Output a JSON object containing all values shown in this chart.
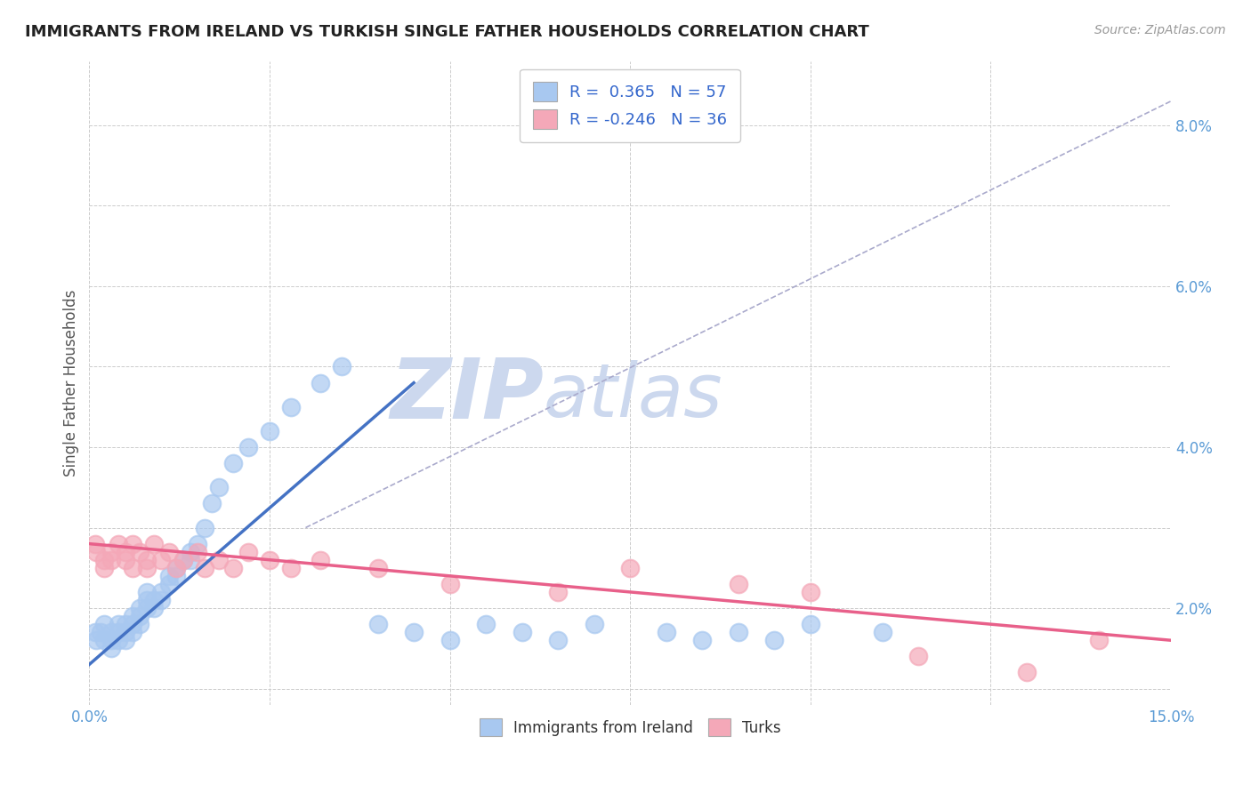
{
  "title": "IMMIGRANTS FROM IRELAND VS TURKISH SINGLE FATHER HOUSEHOLDS CORRELATION CHART",
  "source_text": "Source: ZipAtlas.com",
  "ylabel": "Single Father Households",
  "xlim": [
    0.0,
    0.15
  ],
  "ylim": [
    0.008,
    0.088
  ],
  "xticks": [
    0.0,
    0.025,
    0.05,
    0.075,
    0.1,
    0.125,
    0.15
  ],
  "xticklabels": [
    "0.0%",
    "",
    "",
    "",
    "",
    "",
    "15.0%"
  ],
  "yticks": [
    0.01,
    0.02,
    0.03,
    0.04,
    0.05,
    0.06,
    0.07,
    0.08
  ],
  "yticklabels": [
    "",
    "2.0%",
    "",
    "4.0%",
    "",
    "6.0%",
    "",
    "8.0%"
  ],
  "blue_R": 0.365,
  "blue_N": 57,
  "pink_R": -0.246,
  "pink_N": 36,
  "blue_color": "#a8c8f0",
  "pink_color": "#f4a8b8",
  "blue_line_color": "#4472c4",
  "pink_line_color": "#e8608a",
  "trend_line_color": "#aaaacc",
  "watermark_color": "#ccd8ee",
  "background_color": "#ffffff",
  "grid_color": "#cccccc",
  "blue_scatter_x": [
    0.0008,
    0.001,
    0.0015,
    0.002,
    0.002,
    0.003,
    0.003,
    0.003,
    0.004,
    0.004,
    0.004,
    0.005,
    0.005,
    0.005,
    0.006,
    0.006,
    0.006,
    0.007,
    0.007,
    0.007,
    0.008,
    0.008,
    0.008,
    0.009,
    0.009,
    0.01,
    0.01,
    0.011,
    0.011,
    0.012,
    0.012,
    0.013,
    0.014,
    0.014,
    0.015,
    0.016,
    0.017,
    0.018,
    0.02,
    0.022,
    0.025,
    0.028,
    0.032,
    0.035,
    0.04,
    0.045,
    0.05,
    0.055,
    0.06,
    0.065,
    0.07,
    0.08,
    0.085,
    0.09,
    0.095,
    0.1,
    0.11
  ],
  "blue_scatter_y": [
    0.017,
    0.016,
    0.017,
    0.018,
    0.016,
    0.017,
    0.016,
    0.015,
    0.018,
    0.016,
    0.017,
    0.018,
    0.017,
    0.016,
    0.019,
    0.018,
    0.017,
    0.02,
    0.019,
    0.018,
    0.021,
    0.02,
    0.022,
    0.02,
    0.021,
    0.022,
    0.021,
    0.023,
    0.024,
    0.025,
    0.024,
    0.026,
    0.027,
    0.026,
    0.028,
    0.03,
    0.033,
    0.035,
    0.038,
    0.04,
    0.042,
    0.045,
    0.048,
    0.05,
    0.018,
    0.017,
    0.016,
    0.018,
    0.017,
    0.016,
    0.018,
    0.017,
    0.016,
    0.017,
    0.016,
    0.018,
    0.017
  ],
  "pink_scatter_x": [
    0.0008,
    0.001,
    0.002,
    0.002,
    0.003,
    0.003,
    0.004,
    0.005,
    0.005,
    0.006,
    0.006,
    0.007,
    0.008,
    0.008,
    0.009,
    0.01,
    0.011,
    0.012,
    0.013,
    0.015,
    0.016,
    0.018,
    0.02,
    0.022,
    0.025,
    0.028,
    0.032,
    0.04,
    0.05,
    0.065,
    0.075,
    0.09,
    0.1,
    0.115,
    0.13,
    0.14
  ],
  "pink_scatter_y": [
    0.028,
    0.027,
    0.026,
    0.025,
    0.027,
    0.026,
    0.028,
    0.027,
    0.026,
    0.028,
    0.025,
    0.027,
    0.026,
    0.025,
    0.028,
    0.026,
    0.027,
    0.025,
    0.026,
    0.027,
    0.025,
    0.026,
    0.025,
    0.027,
    0.026,
    0.025,
    0.026,
    0.025,
    0.023,
    0.022,
    0.025,
    0.023,
    0.022,
    0.014,
    0.012,
    0.016
  ],
  "legend1_label": "Immigrants from Ireland",
  "legend2_label": "Turks",
  "blue_line_x": [
    0.0,
    0.045
  ],
  "blue_line_y": [
    0.013,
    0.048
  ],
  "pink_line_x": [
    0.0,
    0.15
  ],
  "pink_line_y": [
    0.028,
    0.016
  ],
  "gray_line_x": [
    0.03,
    0.15
  ],
  "gray_line_y": [
    0.03,
    0.083
  ]
}
